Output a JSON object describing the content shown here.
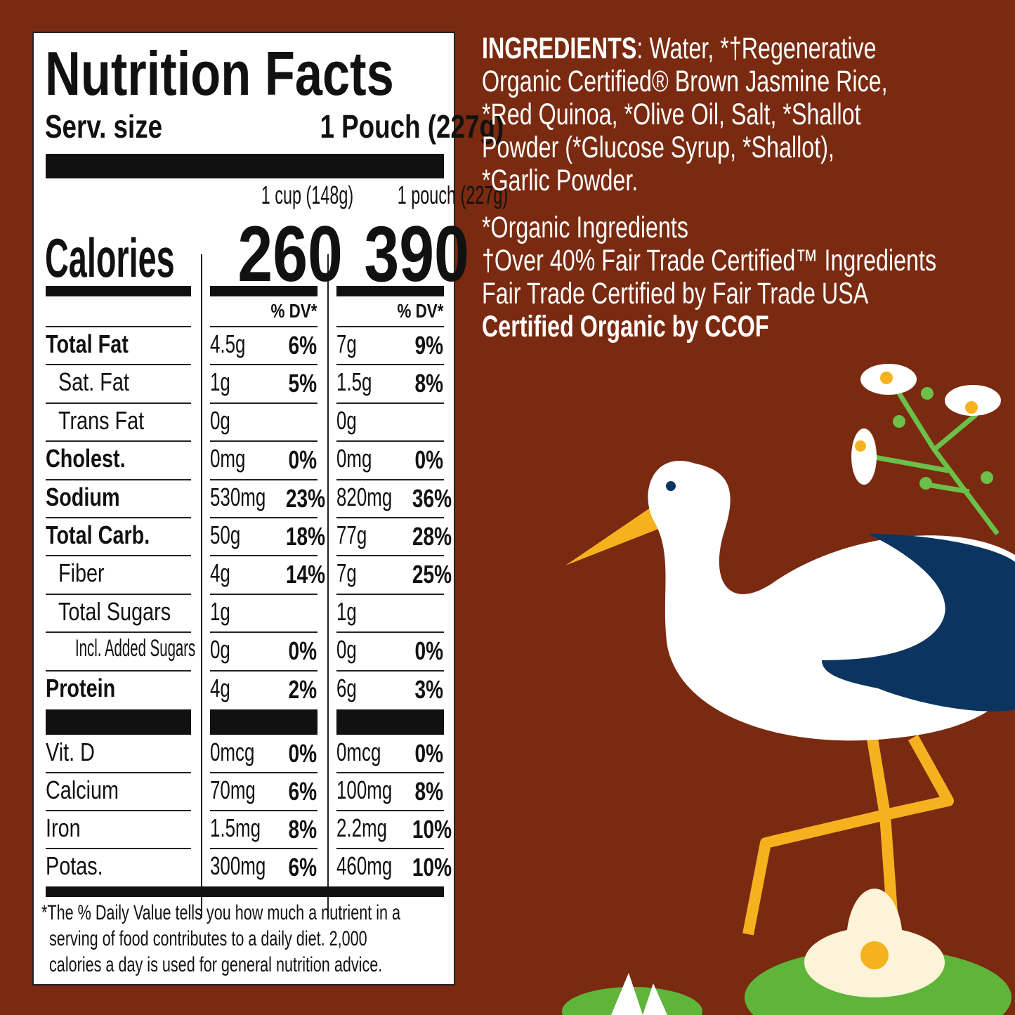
{
  "label": {
    "title": "Nutrition Facts",
    "serving_label": "Serv. size",
    "serving_value": "1 Pouch (227g)",
    "col1_header": "1 cup (148g)",
    "col2_header": "1 pouch (227g)",
    "calories_label": "Calories",
    "calories_col1": "260",
    "calories_col2": "390",
    "dv_header": "% DV*",
    "rows": [
      {
        "name": "Total Fat",
        "bold": true,
        "indent": 0,
        "a": "4.5g",
        "ap": "6%",
        "b": "7g",
        "bp": "9%"
      },
      {
        "name": "Sat. Fat",
        "bold": false,
        "indent": 1,
        "a": "1g",
        "ap": "5%",
        "b": "1.5g",
        "bp": "8%"
      },
      {
        "name": "Trans Fat",
        "bold": false,
        "indent": 1,
        "a": "0g",
        "ap": "",
        "b": "0g",
        "bp": ""
      },
      {
        "name": "Cholest.",
        "bold": true,
        "indent": 0,
        "a": "0mg",
        "ap": "0%",
        "b": "0mg",
        "bp": "0%"
      },
      {
        "name": "Sodium",
        "bold": true,
        "indent": 0,
        "a": "530mg",
        "ap": "23%",
        "b": "820mg",
        "bp": "36%"
      },
      {
        "name": "Total Carb.",
        "bold": true,
        "indent": 0,
        "a": "50g",
        "ap": "18%",
        "b": "77g",
        "bp": "28%"
      },
      {
        "name": "Fiber",
        "bold": false,
        "indent": 1,
        "a": "4g",
        "ap": "14%",
        "b": "7g",
        "bp": "25%"
      },
      {
        "name": "Total Sugars",
        "bold": false,
        "indent": 1,
        "a": "1g",
        "ap": "",
        "b": "1g",
        "bp": ""
      },
      {
        "name": "Incl. Added Sugars",
        "bold": false,
        "indent": 2,
        "a": "0g",
        "ap": "0%",
        "b": "0g",
        "bp": "0%"
      },
      {
        "name": "Protein",
        "bold": true,
        "indent": 0,
        "a": "4g",
        "ap": "2%",
        "b": "6g",
        "bp": "3%"
      }
    ],
    "vitamins": [
      {
        "name": "Vit. D",
        "a": "0mcg",
        "ap": "0%",
        "b": "0mcg",
        "bp": "0%"
      },
      {
        "name": "Calcium",
        "a": "70mg",
        "ap": "6%",
        "b": "100mg",
        "bp": "8%"
      },
      {
        "name": "Iron",
        "a": "1.5mg",
        "ap": "8%",
        "b": "2.2mg",
        "bp": "10%"
      },
      {
        "name": "Potas.",
        "a": "300mg",
        "ap": "6%",
        "b": "460mg",
        "bp": "10%"
      }
    ],
    "footnote": [
      "*The % Daily Value tells you how much a nutrient in a",
      "serving of food contributes to a daily diet. 2,000",
      "calories a day is used for general nutrition advice."
    ]
  },
  "ingredients": {
    "heading": "INGREDIENTS",
    "lines": [
      ": Water, *†Regenerative",
      "Organic Certified® Brown Jasmine Rice,",
      "*Red Quinoa, *Olive Oil, Salt, *Shallot",
      "Powder (*Glucose Syrup, *Shallot),",
      "*Garlic Powder."
    ],
    "notes": [
      "*Organic Ingredients",
      "†Over 40% Fair Trade Certified™ Ingredients",
      "Fair Trade Certified by Fair Trade USA"
    ],
    "certified": "Certified Organic by CCOF"
  },
  "colors": {
    "background": "#7a2a10",
    "heron_wing": "#0b3560",
    "beak": "#f5b21e",
    "lily_pad": "#5fb53a"
  }
}
